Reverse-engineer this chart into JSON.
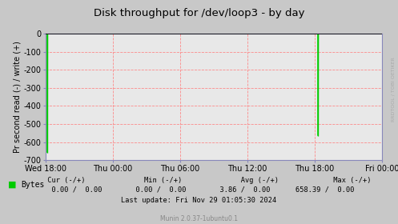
{
  "title": "Disk throughput for /dev/loop3 - by day",
  "ylabel": "Pr second read (-) / write (+)",
  "ylim": [
    -700,
    0
  ],
  "yticks": [
    0,
    -100,
    -200,
    -300,
    -400,
    -500,
    -600,
    -700
  ],
  "xtick_labels": [
    "Wed 18:00",
    "Thu 00:00",
    "Thu 06:00",
    "Thu 12:00",
    "Thu 18:00",
    "Fri 00:00"
  ],
  "xtick_positions": [
    0,
    6,
    12,
    18,
    24,
    30
  ],
  "x_total": 30,
  "spike1_x": 0.15,
  "spike1_y": -658.39,
  "spike2_x": 24.3,
  "spike2_y": -565.0,
  "line_color": "#00cc00",
  "bg_color": "#c8c8c8",
  "plot_bg_color": "#e8e8e8",
  "grid_color": "#ff8080",
  "axis_color": "#8888bb",
  "title_color": "#000000",
  "legend_label": "Bytes",
  "legend_color": "#00cc00",
  "footer_munin": "Munin 2.0.37-1ubuntu0.1",
  "watermark": "RRDTOOL / TOBI OETIKER",
  "top_line_color": "#000000",
  "label_color": "#000000",
  "stats_header": "      Cur (-/+)               Min (-/+)               Avg (-/+)              Max (-/+)",
  "stats_bytes": "        0.00 /  0.00          0.00 /  0.00          3.86 /  0.00        658.39 /  0.00",
  "stats_update": "                    Last update: Fri Nov 29 01:05:30 2024"
}
